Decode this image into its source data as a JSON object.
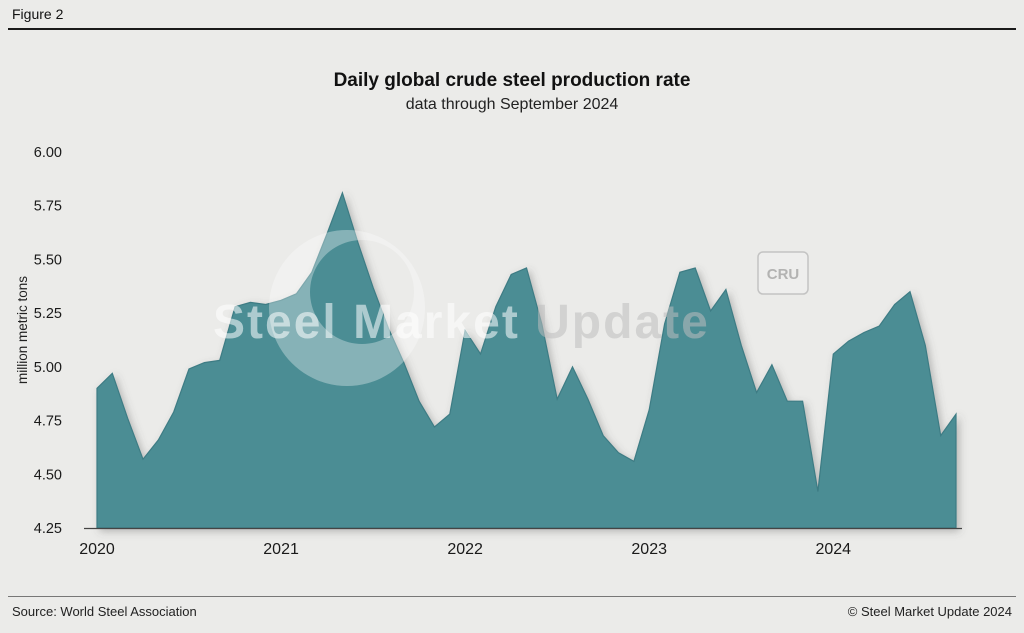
{
  "figure_label": "Figure 2",
  "footer": {
    "source": "Source: World Steel Association",
    "copyright": "© Steel Market Update 2024"
  },
  "watermark": {
    "text_primary": "Steel Market",
    "text_secondary": " Update",
    "badge": "CRU"
  },
  "colors": {
    "background": "#ebebe9",
    "area_fill": "#4b8d94",
    "area_edge": "#3e7c84",
    "axis_line": "#444444",
    "tick_text": "#1a1a1a",
    "watermark_white": "rgba(255,255,255,0.55)",
    "watermark_gray": "rgba(190,190,190,0.55)"
  },
  "chart_data": {
    "type": "area",
    "title": "Daily global crude steel production rate",
    "subtitle": "data through September 2024",
    "xlabel": "",
    "ylabel": "million metric tons",
    "ylim": [
      4.25,
      6.0
    ],
    "yticks": [
      6.0,
      5.75,
      5.5,
      5.25,
      5.0,
      4.75,
      4.5,
      4.25
    ],
    "xticks": [
      "2020",
      "2021",
      "2022",
      "2023",
      "2024"
    ],
    "xtick_month_indices": [
      0,
      12,
      24,
      36,
      48
    ],
    "grid": false,
    "legend": false,
    "series_name": "Daily global crude steel production rate (million metric tons)",
    "months": [
      "2020-01",
      "2020-02",
      "2020-03",
      "2020-04",
      "2020-05",
      "2020-06",
      "2020-07",
      "2020-08",
      "2020-09",
      "2020-10",
      "2020-11",
      "2020-12",
      "2021-01",
      "2021-02",
      "2021-03",
      "2021-04",
      "2021-05",
      "2021-06",
      "2021-07",
      "2021-08",
      "2021-09",
      "2021-10",
      "2021-11",
      "2021-12",
      "2022-01",
      "2022-02",
      "2022-03",
      "2022-04",
      "2022-05",
      "2022-06",
      "2022-07",
      "2022-08",
      "2022-09",
      "2022-10",
      "2022-11",
      "2022-12",
      "2023-01",
      "2023-02",
      "2023-03",
      "2023-04",
      "2023-05",
      "2023-06",
      "2023-07",
      "2023-08",
      "2023-09",
      "2023-10",
      "2023-11",
      "2023-12",
      "2024-01",
      "2024-02",
      "2024-03",
      "2024-04",
      "2024-05",
      "2024-06",
      "2024-07",
      "2024-08",
      "2024-09"
    ],
    "values": [
      4.9,
      4.97,
      4.76,
      4.57,
      4.66,
      4.79,
      4.99,
      5.02,
      5.03,
      5.28,
      5.3,
      5.29,
      5.31,
      5.34,
      5.44,
      5.62,
      5.81,
      5.58,
      5.37,
      5.18,
      5.02,
      4.84,
      4.72,
      4.78,
      5.17,
      5.06,
      5.28,
      5.43,
      5.46,
      5.2,
      4.85,
      5.0,
      4.85,
      4.68,
      4.6,
      4.56,
      4.8,
      5.2,
      5.44,
      5.46,
      5.26,
      5.36,
      5.1,
      4.88,
      5.01,
      4.84,
      4.84,
      4.42,
      5.06,
      5.12,
      5.16,
      5.19,
      5.29,
      5.35,
      5.1,
      4.68,
      4.78
    ]
  }
}
